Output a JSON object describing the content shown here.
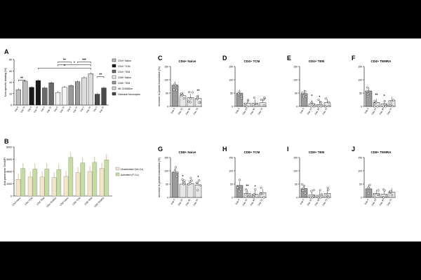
{
  "chart_data": [
    {
      "panel": "A",
      "type": "bar",
      "ylabel": "Non-specific binding (%)",
      "ylim": [
        0,
        80
      ],
      "yticks": [
        0,
        20,
        40,
        60,
        80
      ],
      "xtick_label": "Day",
      "legend_position": "right",
      "legend": [
        "CD4+ Naive",
        "CD4+ TCM",
        "CD4+ TEM",
        "CD8+ Naive",
        "CD8+ TEM",
        "NK CD56Dim",
        "Classical Monocytes"
      ],
      "groups": [
        {
          "name": "CD4+ Naive",
          "color": "#bdbdbd",
          "labels": [
            "Day 0",
            "Day 70"
          ],
          "values": [
            27,
            42
          ]
        },
        {
          "name": "CD4+ TCM",
          "color": "#1a1a1a",
          "labels": [
            "Day 0",
            "Day 70"
          ],
          "values": [
            31,
            43
          ]
        },
        {
          "name": "CD4+ TEM",
          "color": "#6a6a6a",
          "labels": [
            "Day 0",
            "Day 70"
          ],
          "values": [
            30,
            39
          ]
        },
        {
          "name": "CD8+ Naive",
          "color": "#f2f2f2",
          "labels": [
            "Day 0",
            "Day 70"
          ],
          "values": [
            22,
            31
          ]
        },
        {
          "name": "CD8+ TEM",
          "color": "#9a9a9a",
          "labels": [
            "Day 0",
            "Day 70"
          ],
          "values": [
            34,
            41
          ]
        },
        {
          "name": "NK CD56Dim",
          "color": "#dcdcdc",
          "labels": [
            "Day 0",
            "Day 70"
          ],
          "values": [
            48,
            55
          ]
        },
        {
          "name": "Classical Monocytes",
          "color": "#4a4a4a",
          "labels": [
            "Day 0",
            "Day 70"
          ],
          "values": [
            19,
            30
          ]
        }
      ],
      "annotations": [
        "**",
        "**",
        "***",
        "*",
        "*",
        "**"
      ]
    },
    {
      "panel": "B",
      "type": "bar",
      "ylabel": "Anti-puromycin GeoMFI",
      "ylim": [
        0,
        8000
      ],
      "yticks": [
        0,
        2000,
        4000,
        6000,
        8000
      ],
      "categories": [
        "CD4 Naive",
        "CD4 TCM",
        "CD4 TEM",
        "CD4 TEMRA",
        "CD8 Naive",
        "CD8 TCM",
        "CD8 TEM",
        "CD8 TEMRA"
      ],
      "legend_position": "right",
      "series": [
        {
          "name": "Unactivated (UA-Co)",
          "color": "#f3e6c8",
          "values": [
            2700,
            3100,
            3100,
            3000,
            3200,
            3800,
            4000,
            4500
          ]
        },
        {
          "name": "Activated (P-Co)",
          "color": "#c5dca0",
          "values": [
            4500,
            4400,
            4400,
            4300,
            6300,
            5400,
            5500,
            5900
          ]
        }
      ]
    },
    {
      "panel": "C",
      "type": "bar",
      "title": "CD4+ Naive",
      "ylabel": "Increase in protein translation (%)",
      "ylim": [
        0,
        150
      ],
      "yticks": [
        0,
        50,
        100,
        150
      ],
      "categories": [
        "Day 0",
        "Day 15",
        "Day 35",
        "Day 70"
      ],
      "values": [
        80,
        40,
        33,
        30
      ],
      "stars": [
        "",
        "",
        "",
        "**"
      ]
    },
    {
      "panel": "D",
      "type": "bar",
      "title": "CD4+ TCM",
      "ylim": [
        0,
        150
      ],
      "yticks": [
        0,
        50,
        100,
        150
      ],
      "categories": [
        "Day 0",
        "Day 15",
        "Day 35",
        "Day 70"
      ],
      "values": [
        50,
        12,
        12,
        14
      ],
      "stars": [
        "",
        "",
        "",
        ""
      ]
    },
    {
      "panel": "E",
      "type": "bar",
      "title": "CD4+ TEM",
      "ylim": [
        0,
        150
      ],
      "yticks": [
        0,
        50,
        100,
        150
      ],
      "categories": [
        "Day 0",
        "Day 15",
        "Day 35",
        "Day 70"
      ],
      "values": [
        48,
        10,
        7,
        14
      ],
      "stars": [
        "",
        "*",
        "*",
        ""
      ]
    },
    {
      "panel": "F",
      "type": "bar",
      "title": "CD4+ TEMRA",
      "ylim": [
        0,
        150
      ],
      "yticks": [
        0,
        50,
        100,
        150
      ],
      "categories": [
        "Day 0",
        "Day 15",
        "Day 35",
        "Day 70"
      ],
      "values": [
        58,
        15,
        10,
        22
      ],
      "stars": [
        "",
        "**",
        "*",
        ""
      ]
    },
    {
      "panel": "G",
      "type": "bar",
      "title": "CD8+ Naive",
      "ylabel": "Increase in protein translation (%)",
      "ylim": [
        0,
        150
      ],
      "yticks": [
        0,
        50,
        100,
        150
      ],
      "categories": [
        "Day 0",
        "Day 15",
        "Day 35",
        "Day 70"
      ],
      "values": [
        95,
        50,
        52,
        47
      ],
      "stars": [
        "",
        "*",
        "",
        "*"
      ]
    },
    {
      "panel": "H",
      "type": "bar",
      "title": "CD8+ TCM",
      "ylim": [
        0,
        150
      ],
      "yticks": [
        0,
        50,
        100,
        150
      ],
      "categories": [
        "Day 0",
        "Day 15",
        "Day 35",
        "Day 70"
      ],
      "values": [
        45,
        15,
        12,
        18
      ],
      "stars": [
        "",
        "**",
        "*",
        ""
      ]
    },
    {
      "panel": "I",
      "type": "bar",
      "title": "CD8+ TEM",
      "ylim": [
        0,
        150
      ],
      "yticks": [
        0,
        50,
        100,
        150
      ],
      "categories": [
        "Day 0",
        "Day 15",
        "Day 35",
        "Day 70"
      ],
      "values": [
        33,
        10,
        8,
        15
      ],
      "stars": [
        "",
        "",
        "",
        ""
      ]
    },
    {
      "panel": "J",
      "type": "bar",
      "title": "CD8+ TEMRA",
      "ylim": [
        0,
        150
      ],
      "yticks": [
        0,
        50,
        100,
        150
      ],
      "categories": [
        "Day 0",
        "Day 15",
        "Day 35",
        "Day 70"
      ],
      "values": [
        32,
        15,
        12,
        20
      ],
      "stars": [
        "",
        "",
        "",
        ""
      ]
    }
  ]
}
